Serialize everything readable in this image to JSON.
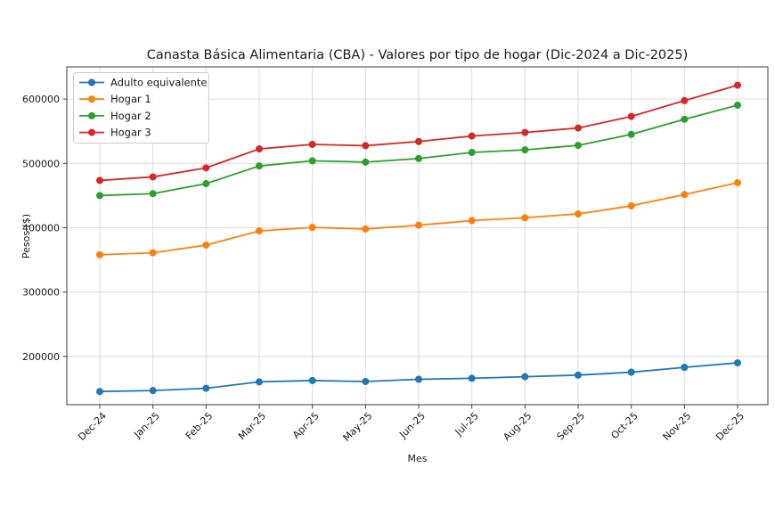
{
  "chart_data": {
    "type": "line",
    "title": "Canasta Básica Alimentaria (CBA) - Valores por tipo de hogar (Dic-2024 a Dic-2025)",
    "xlabel": "Mes",
    "ylabel": "Pesos ($)",
    "categories": [
      "Dec-24",
      "Jan-25",
      "Feb-25",
      "Mar-25",
      "Apr-25",
      "May-25",
      "Jun-25",
      "Jul-25",
      "Aug-25",
      "Sep-25",
      "Oct-25",
      "Nov-25",
      "Dec-25"
    ],
    "series": [
      {
        "name": "Adulto equivalente",
        "color": "#1f77b4",
        "values": [
          145500,
          147000,
          150500,
          160500,
          162500,
          161000,
          164500,
          166000,
          168500,
          171000,
          175500,
          183000,
          190000
        ]
      },
      {
        "name": "Hogar 1",
        "color": "#ff7f0e",
        "values": [
          358000,
          361000,
          373000,
          395000,
          400500,
          398000,
          404000,
          411000,
          415500,
          421500,
          434000,
          451500,
          470000
        ]
      },
      {
        "name": "Hogar 2",
        "color": "#2ca02c",
        "values": [
          450000,
          453000,
          468500,
          496000,
          504000,
          502000,
          507500,
          517000,
          521000,
          528000,
          545000,
          568500,
          590500
        ]
      },
      {
        "name": "Hogar 3",
        "color": "#d62728",
        "values": [
          473500,
          479000,
          493000,
          522500,
          529500,
          527500,
          534000,
          542500,
          548000,
          555000,
          573000,
          597500,
          621500
        ]
      }
    ],
    "ylim": [
      125000,
      650000
    ],
    "yticks": [
      200000,
      300000,
      400000,
      500000,
      600000
    ],
    "grid": true,
    "legend_position": "upper left",
    "marker": "o",
    "x_tick_rotation": 45
  }
}
